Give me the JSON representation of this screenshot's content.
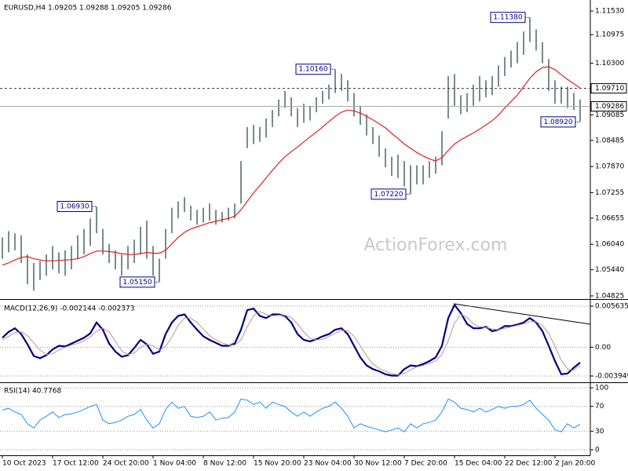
{
  "chart_data": [
    {
      "type": "ohlc",
      "title": "EURUSD,H4  1.09205 1.09288 1.09205 1.09286",
      "watermark": "ActionForex.com",
      "color": "#2f4f4f",
      "high": [
        1.062,
        1.0635,
        1.063,
        1.0625,
        1.058,
        1.056,
        1.0565,
        1.058,
        1.06,
        1.0585,
        1.059,
        1.06,
        1.0625,
        1.064,
        1.0665,
        1.0693,
        1.064,
        1.0605,
        1.059,
        1.058,
        1.06,
        1.0615,
        1.0645,
        1.066,
        1.06,
        1.057,
        1.064,
        1.069,
        1.0705,
        1.0715,
        1.0695,
        1.0685,
        1.069,
        1.07,
        1.0685,
        1.068,
        1.069,
        1.07,
        1.08,
        1.088,
        1.0885,
        1.088,
        1.09,
        1.092,
        1.0945,
        1.0965,
        1.095,
        1.0925,
        1.0935,
        1.093,
        1.095,
        1.0965,
        1.098,
        1.1016,
        1.1005,
        1.099,
        1.096,
        1.093,
        1.091,
        1.088,
        1.086,
        1.083,
        1.081,
        1.0815,
        1.08,
        1.079,
        1.079,
        1.079,
        1.08,
        1.081,
        1.087,
        1.1,
        1.1005,
        1.0955,
        1.096,
        1.098,
        1.1,
        1.099,
        1.1,
        1.1025,
        1.1045,
        1.106,
        1.108,
        1.1105,
        1.1138,
        1.111,
        1.108,
        1.104,
        1.099,
        1.0975,
        1.0975,
        1.096,
        1.0945
      ],
      "low": [
        1.057,
        1.0585,
        1.059,
        1.056,
        1.051,
        1.0495,
        1.052,
        1.053,
        1.0545,
        1.0535,
        1.053,
        1.0545,
        1.057,
        1.058,
        1.06,
        1.063,
        1.058,
        1.056,
        1.0545,
        1.053,
        1.0545,
        1.056,
        1.058,
        1.057,
        1.053,
        1.0515,
        1.057,
        1.063,
        1.0665,
        1.068,
        1.066,
        1.065,
        1.0655,
        1.066,
        1.065,
        1.0655,
        1.066,
        1.0665,
        1.07,
        1.083,
        1.084,
        1.0845,
        1.0855,
        1.088,
        1.0905,
        1.0925,
        1.0905,
        1.088,
        1.089,
        1.0895,
        1.0915,
        1.0935,
        1.0945,
        1.096,
        1.0965,
        1.094,
        1.0905,
        1.0885,
        1.086,
        1.084,
        1.081,
        1.0785,
        1.0765,
        1.076,
        1.074,
        1.0722,
        1.0745,
        1.0745,
        1.076,
        1.077,
        1.079,
        1.09,
        1.093,
        1.091,
        1.0915,
        1.093,
        1.094,
        1.095,
        1.0955,
        1.0975,
        1.1,
        1.102,
        1.103,
        1.105,
        1.108,
        1.106,
        1.103,
        1.0965,
        1.0935,
        1.0935,
        1.0925,
        1.092,
        1.0892
      ],
      "ma": {
        "color": "#e02020",
        "values": [
          1.0555,
          1.056,
          1.0567,
          1.0573,
          1.0575,
          1.057,
          1.0567,
          1.0565,
          1.0565,
          1.0566,
          1.0567,
          1.0568,
          1.057,
          1.0575,
          1.0582,
          1.0588,
          1.0588,
          1.0587,
          1.0585,
          1.0582,
          1.058,
          1.058,
          1.0582,
          1.0585,
          1.0583,
          1.0583,
          1.059,
          1.0605,
          1.062,
          1.0632,
          1.064,
          1.0645,
          1.065,
          1.0655,
          1.0658,
          1.0662,
          1.0665,
          1.067,
          1.0685,
          1.0705,
          1.0725,
          1.0742,
          1.076,
          1.0778,
          1.0795,
          1.081,
          1.0822,
          1.0833,
          1.0845,
          1.0857,
          1.0868,
          1.088,
          1.0893,
          1.0905,
          1.0915,
          1.092,
          1.0918,
          1.0913,
          1.0905,
          1.0897,
          1.0888,
          1.0878,
          1.0865,
          1.0853,
          1.084,
          1.083,
          1.082,
          1.0812,
          1.0805,
          1.08,
          1.0808,
          1.0825,
          1.084,
          1.085,
          1.0858,
          1.0866,
          1.0875,
          1.0885,
          1.0895,
          1.0908,
          1.0925,
          1.094,
          1.0955,
          1.0975,
          1.0995,
          1.101,
          1.102,
          1.1022,
          1.1015,
          1.1003,
          1.0992,
          1.0982,
          1.0972
        ]
      },
      "ylim": [
        1.0475,
        1.1179
      ],
      "yticks": [
        {
          "value": 1.1153,
          "label": "1.11530"
        },
        {
          "value": 1.10975,
          "label": "1.10975"
        },
        {
          "value": 1.103,
          "label": "1.10300"
        },
        {
          "value": 1.09085,
          "label": "1.09085"
        },
        {
          "value": 1.08485,
          "label": "1.08485"
        },
        {
          "value": 1.0787,
          "label": "1.07870"
        },
        {
          "value": 1.07255,
          "label": "1.07255"
        },
        {
          "value": 1.06655,
          "label": "1.06655"
        },
        {
          "value": 1.0604,
          "label": "1.06040"
        },
        {
          "value": 1.0544,
          "label": "1.05440"
        },
        {
          "value": 1.04825,
          "label": "1.04825"
        }
      ],
      "hlines": [
        {
          "value": 1.0971,
          "label": "1.09710",
          "dashed": true
        },
        {
          "value": 1.09286,
          "label": "1.09286",
          "dashed": false
        }
      ],
      "annotations": [
        {
          "value": 1.1138,
          "label": "1.11380"
        },
        {
          "value": 1.1016,
          "label": "1.10160"
        },
        {
          "value": 1.0693,
          "label": "1.06930"
        },
        {
          "value": 1.0515,
          "label": "1.05150"
        },
        {
          "value": 1.0722,
          "label": "1.07220"
        },
        {
          "value": 1.0892,
          "label": "1.08920"
        }
      ]
    },
    {
      "type": "line",
      "title": "MACD(12,26,9) -0.002144 -0.002373",
      "series": [
        {
          "color": "#000080",
          "values": [
            0.0013,
            0.0021,
            0.0026,
            0.0018,
            0.0004,
            -0.0012,
            -0.0015,
            -0.0011,
            -0.0003,
            0.0002,
            0.0001,
            0.0005,
            0.0009,
            0.0013,
            0.0019,
            0.0034,
            0.0024,
            0.0005,
            -0.0006,
            -0.0013,
            -0.0011,
            -0.0001,
            0.001,
            0.0004,
            -0.0009,
            -0.0006,
            0.0018,
            0.0034,
            0.0043,
            0.0045,
            0.0034,
            0.0024,
            0.0015,
            0.001,
            0.0006,
            0.0002,
            0.0002,
            0.0005,
            0.0024,
            0.0051,
            0.0053,
            0.0043,
            0.004,
            0.0045,
            0.0045,
            0.0043,
            0.0034,
            0.0018,
            0.001,
            0.0008,
            0.0011,
            0.0015,
            0.0018,
            0.0024,
            0.0026,
            0.0018,
            0.0002,
            -0.0014,
            -0.0025,
            -0.003,
            -0.0033,
            -0.0037,
            -0.0039,
            -0.0039,
            -0.003,
            -0.0025,
            -0.0026,
            -0.0023,
            -0.0019,
            -0.0014,
            0.0002,
            0.004,
            0.0058,
            0.0047,
            0.0032,
            0.0026,
            0.0026,
            0.0028,
            0.0022,
            0.0024,
            0.0029,
            0.0029,
            0.0031,
            0.0034,
            0.004,
            0.0034,
            0.0022,
            0.0002,
            -0.0019,
            -0.0037,
            -0.0036,
            -0.0028,
            -0.0021
          ]
        },
        {
          "color": "#c89090",
          "values": [
            0.001,
            0.0015,
            0.002,
            0.0021,
            0.0016,
            0.0006,
            -0.0004,
            -0.001,
            -0.0009,
            -0.0004,
            0.0,
            0.0003,
            0.0005,
            0.0009,
            0.0014,
            0.0022,
            0.0026,
            0.0021,
            0.0008,
            -0.0005,
            -0.001,
            -0.0008,
            0.0,
            0.0004,
            0.0002,
            -0.0004,
            0.0001,
            0.0014,
            0.003,
            0.004,
            0.004,
            0.0034,
            0.0025,
            0.0016,
            0.001,
            0.0006,
            0.0003,
            0.0003,
            0.001,
            0.0028,
            0.0043,
            0.0049,
            0.0045,
            0.0043,
            0.0044,
            0.0044,
            0.0041,
            0.0032,
            0.0021,
            0.0012,
            0.001,
            0.0011,
            0.0015,
            0.0019,
            0.0023,
            0.0023,
            0.0015,
            0.0002,
            -0.0012,
            -0.0023,
            -0.0029,
            -0.0033,
            -0.0036,
            -0.0038,
            -0.0036,
            -0.0031,
            -0.0027,
            -0.0025,
            -0.0022,
            -0.0019,
            -0.001,
            0.0009,
            0.0033,
            0.0045,
            0.0041,
            0.0032,
            0.0028,
            0.0027,
            0.0025,
            0.0024,
            0.0026,
            0.0028,
            0.003,
            0.0032,
            0.0035,
            0.0035,
            0.003,
            0.0019,
            0.0001,
            -0.0018,
            -0.003,
            -0.0032,
            -0.0024
          ]
        }
      ],
      "ylim": [
        -0.00481,
        0.006389
      ],
      "yticks": [
        0.005635,
        {
          "value": 0,
          "label": "0.00"
        },
        -0.003949
      ]
    },
    {
      "type": "line",
      "title": "RSI(14) 40.7768",
      "categories": [
        "10 Oct 2023",
        null,
        null,
        null,
        null,
        null,
        null,
        null,
        "17 Oct 12:00",
        null,
        null,
        null,
        null,
        null,
        null,
        null,
        "24 Oct 20:00",
        null,
        null,
        null,
        null,
        null,
        null,
        null,
        "1 Nov 04:00",
        null,
        null,
        null,
        null,
        null,
        null,
        null,
        "8 Nov 12:00",
        null,
        null,
        null,
        null,
        null,
        null,
        null,
        "15 Nov 20:00",
        null,
        null,
        null,
        null,
        null,
        null,
        null,
        "23 Nov 04:00",
        null,
        null,
        null,
        null,
        null,
        null,
        null,
        "30 Nov 12:00",
        null,
        null,
        null,
        null,
        null,
        null,
        null,
        "7 Dec 20:00",
        null,
        null,
        null,
        null,
        null,
        null,
        null,
        "15 Dec 04:00",
        null,
        null,
        null,
        null,
        null,
        null,
        null,
        "22 Dec 12:00",
        null,
        null,
        null,
        null,
        null,
        null,
        null,
        "2 Jan 20:00",
        null,
        null,
        null,
        null
      ],
      "series": [
        {
          "color": "#1e90ff",
          "values": [
            64,
            67,
            61,
            57,
            42,
            35,
            48,
            54,
            61,
            52,
            57,
            58,
            61,
            65,
            70,
            73,
            48,
            42,
            44,
            48,
            54,
            57,
            65,
            48,
            35,
            42,
            65,
            77,
            67,
            70,
            54,
            52,
            54,
            61,
            48,
            51,
            52,
            61,
            82,
            80,
            73,
            77,
            67,
            77,
            73,
            70,
            61,
            54,
            61,
            54,
            61,
            67,
            70,
            77,
            67,
            54,
            35,
            42,
            38,
            35,
            32,
            29,
            32,
            35,
            29,
            42,
            35,
            42,
            44,
            48,
            61,
            82,
            77,
            67,
            65,
            61,
            67,
            61,
            65,
            70,
            67,
            70,
            70,
            73,
            80,
            67,
            57,
            48,
            32,
            29,
            42,
            35,
            41
          ]
        }
      ],
      "ylim": [
        -8.9,
        107.6
      ],
      "yticks": [
        100,
        70,
        30,
        0
      ]
    }
  ]
}
